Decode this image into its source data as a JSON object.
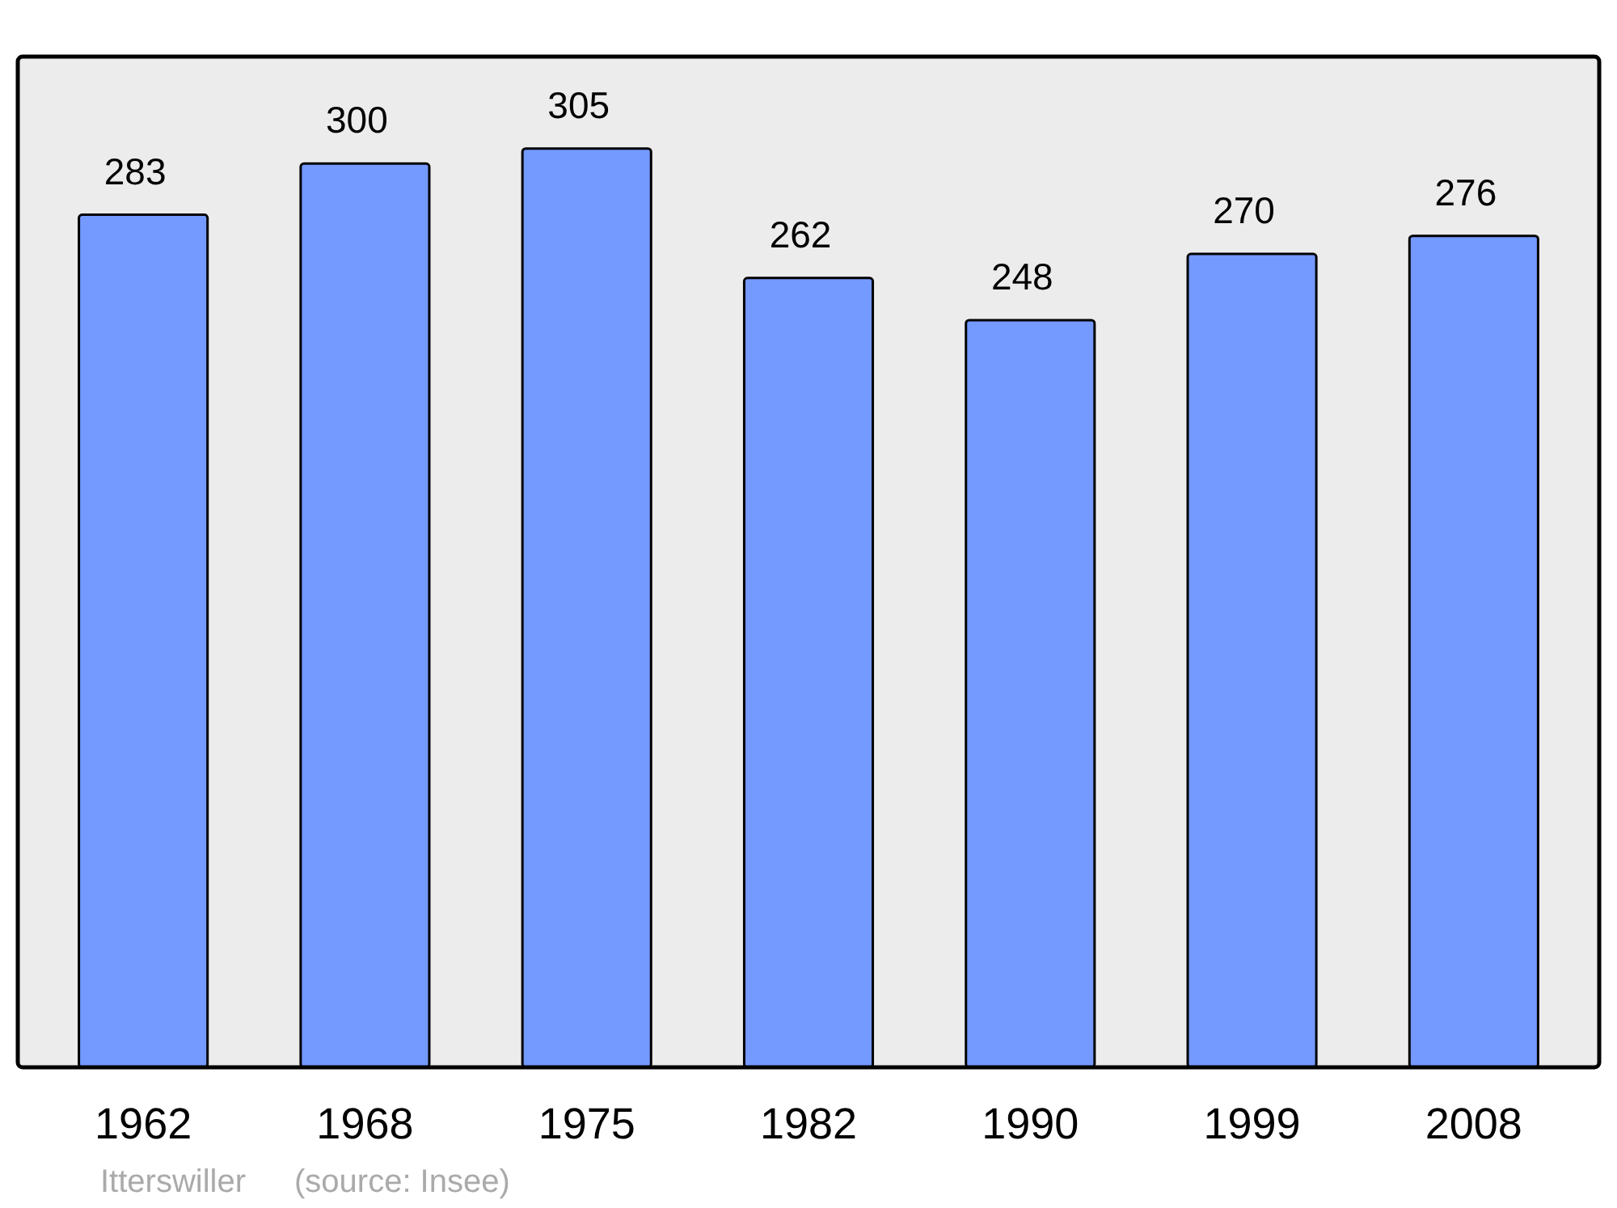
{
  "chart_data": {
    "type": "bar",
    "categories": [
      "1962",
      "1968",
      "1975",
      "1982",
      "1990",
      "1999",
      "2008"
    ],
    "values": [
      283,
      300,
      305,
      262,
      248,
      270,
      276
    ],
    "color": "#7499ff",
    "data_labels": true,
    "annotations": [
      "Itterswiller",
      "(source: Insee)"
    ]
  }
}
